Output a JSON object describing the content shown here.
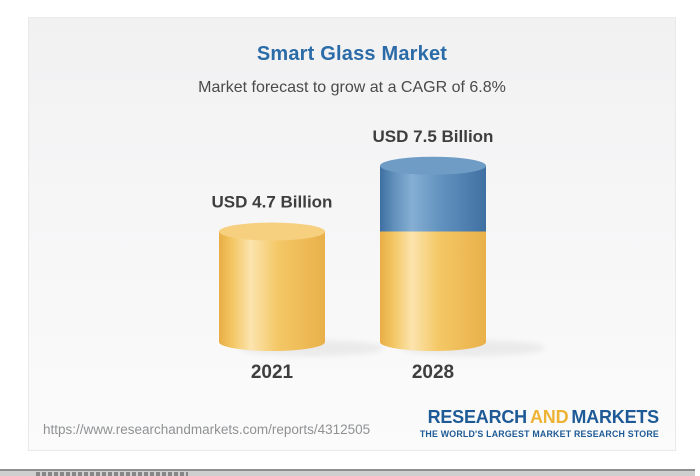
{
  "card": {
    "title": "Smart Glass Market",
    "subtitle": "Market forecast to grow at a CAGR of 6.8%"
  },
  "chart_data": {
    "type": "bar",
    "subtype": "3d-cylinder-stacked",
    "title": "Smart Glass Market",
    "subtitle": "Market forecast to grow at a CAGR of 6.8%",
    "unit": "USD Billion",
    "cagr": "6.8%",
    "categories": [
      "2021",
      "2028"
    ],
    "series": [
      {
        "name": "market-size-2021",
        "color": "#f2c464",
        "values": [
          4.7,
          4.7
        ]
      },
      {
        "name": "forecast-growth",
        "color": "#4f81ad",
        "values": [
          0,
          2.8
        ]
      }
    ],
    "totals": [
      4.7,
      7.5
    ],
    "value_labels": [
      "USD 4.7 Billion",
      "USD 7.5 Billion"
    ],
    "ylim": [
      0,
      8
    ],
    "legend": false,
    "gridlines": false
  },
  "footer": {
    "url": "https://www.researchandmarkets.com/reports/4312505",
    "logo": {
      "word1": "RESEARCH",
      "word2": "AND",
      "word3": "MARKETS",
      "tagline": "THE WORLD'S LARGEST MARKET RESEARCH STORE"
    }
  },
  "colors": {
    "title_blue": "#2b6ca8",
    "subtitle_gray": "#4a4a4a",
    "label_gray": "#3e3e3e",
    "gold_edge": "#e9ae45",
    "gold_highlight": "#fce4ae",
    "gold_top": "#f6d07f",
    "blue_edge": "#3e6fa0",
    "blue_highlight": "#86afd3",
    "blue_top": "#6e9cc4",
    "logo_blue": "#1d5a96",
    "logo_gold": "#edb334",
    "url_gray": "#8f9193"
  }
}
